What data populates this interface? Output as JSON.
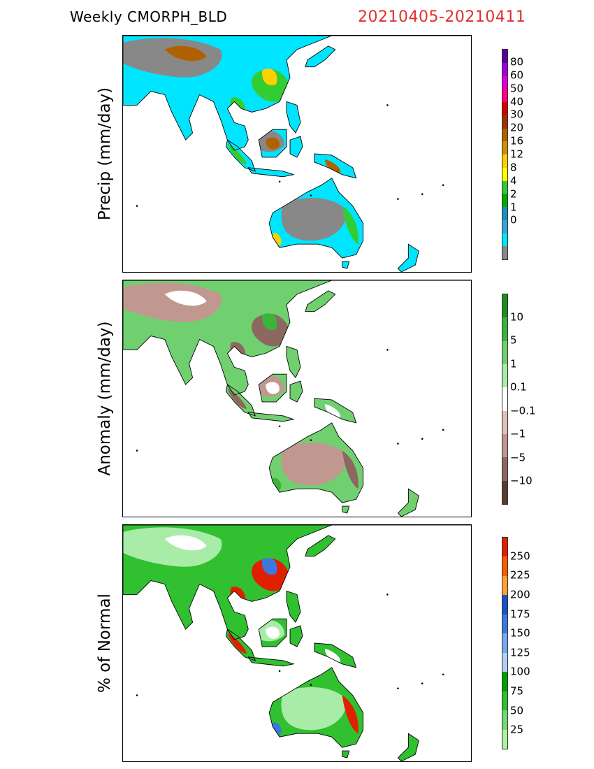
{
  "header": {
    "title": "Weekly CMORPH_BLD",
    "date_range": "20210405-20210411"
  },
  "panels": [
    {
      "id": "precip",
      "ylabel": "Precip (mm/day)",
      "colors": [
        "#5a009a",
        "#9b00e0",
        "#dd00dd",
        "#ff0080",
        "#d00000",
        "#a03000",
        "#b06000",
        "#d09000",
        "#ffd000",
        "#ffff00",
        "#33cc33",
        "#00aa00",
        "#1e90c0",
        "#30a8d8",
        "#00e5ff",
        "#888888"
      ],
      "ticks": [
        "80",
        "60",
        "50",
        "40",
        "30",
        "20",
        "16",
        "12",
        "8",
        "4",
        "2",
        "1",
        "0"
      ],
      "palette": {
        "ocean": "#ffffff",
        "land_a": "#888888",
        "land_b": "#00e5ff",
        "accent1": "#33cc33",
        "accent2": "#ffd000",
        "accent3": "#b06000"
      }
    },
    {
      "id": "anomaly",
      "ylabel": "Anomaly (mm/day)",
      "colors": [
        "#1f8c1f",
        "#3cb43c",
        "#70d070",
        "#a8eca8",
        "#ffffff",
        "#e0c0b8",
        "#c09890",
        "#8c6860",
        "#5c3a34"
      ],
      "ticks": [
        "10",
        "5",
        "1",
        "0.1",
        "−0.1",
        "−1",
        "−5",
        "−10"
      ],
      "palette": {
        "ocean": "#ffffff",
        "land_a": "#c09890",
        "land_b": "#70d070",
        "accent1": "#8c6860",
        "accent2": "#3cb43c",
        "accent3": "#ffffff"
      }
    },
    {
      "id": "percent",
      "ylabel": "% of Normal",
      "colors": [
        "#e02000",
        "#ff5a00",
        "#ffa030",
        "#1a50c8",
        "#3c78e0",
        "#78a8f0",
        "#b4d0f8",
        "#00a000",
        "#30c030",
        "#70dc70",
        "#b0f0a0"
      ],
      "ticks": [
        "250",
        "225",
        "200",
        "175",
        "150",
        "125",
        "100",
        "75",
        "50",
        "25"
      ],
      "palette": {
        "ocean": "#ffffff",
        "land_a": "#a8eca8",
        "land_b": "#30c030",
        "accent1": "#e02000",
        "accent2": "#3c78e0",
        "accent3": "#ffffff"
      }
    }
  ]
}
